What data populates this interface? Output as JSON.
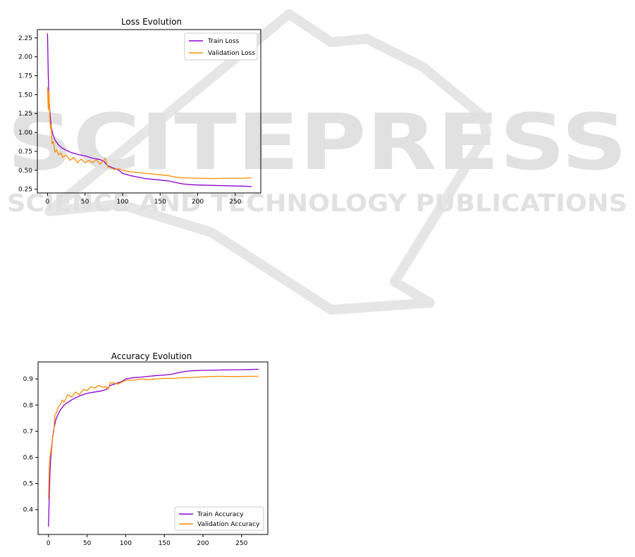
{
  "watermark": {
    "title": "SCITEPRESS",
    "subtitle": "SCIENCE AND TECHNOLOGY PUBLICATIONS",
    "color": "#d9d9d9"
  },
  "chart_data": [
    {
      "type": "line",
      "title": "Loss Evolution",
      "xlabel": "",
      "ylabel": "",
      "xlim": [
        -13.5,
        284
      ],
      "ylim": [
        0.2,
        2.36
      ],
      "xticks": [
        "0",
        "50",
        "100",
        "150",
        "200",
        "250"
      ],
      "xtick_values": [
        0,
        50,
        100,
        150,
        200,
        250
      ],
      "yticks": [
        "0.25",
        "0.50",
        "0.75",
        "1.00",
        "1.25",
        "1.50",
        "1.75",
        "2.00",
        "2.25"
      ],
      "ytick_values": [
        0.25,
        0.5,
        0.75,
        1.0,
        1.25,
        1.5,
        1.75,
        2.0,
        2.25
      ],
      "legend_position": "upper-right",
      "series": [
        {
          "name": "Train Loss",
          "color": "#8b00d4",
          "points": [
            [
              0,
              2.31
            ],
            [
              1,
              1.75
            ],
            [
              2,
              1.45
            ],
            [
              3,
              1.3
            ],
            [
              4,
              1.18
            ],
            [
              5,
              1.08
            ],
            [
              7,
              0.98
            ],
            [
              10,
              0.9
            ],
            [
              15,
              0.83
            ],
            [
              20,
              0.79
            ],
            [
              30,
              0.74
            ],
            [
              40,
              0.71
            ],
            [
              50,
              0.69
            ],
            [
              60,
              0.66
            ],
            [
              70,
              0.64
            ],
            [
              75,
              0.62
            ],
            [
              80,
              0.56
            ],
            [
              90,
              0.52
            ],
            [
              95,
              0.5
            ],
            [
              100,
              0.46
            ],
            [
              110,
              0.43
            ],
            [
              120,
              0.41
            ],
            [
              130,
              0.39
            ],
            [
              140,
              0.38
            ],
            [
              150,
              0.37
            ],
            [
              160,
              0.36
            ],
            [
              170,
              0.34
            ],
            [
              180,
              0.32
            ],
            [
              190,
              0.31
            ],
            [
              200,
              0.305
            ],
            [
              220,
              0.3
            ],
            [
              240,
              0.295
            ],
            [
              260,
              0.29
            ],
            [
              272,
              0.285
            ]
          ]
        },
        {
          "name": "Validation Loss",
          "color": "#ff8c00",
          "points": [
            [
              0,
              1.6
            ],
            [
              1,
              1.3
            ],
            [
              2,
              1.55
            ],
            [
              3,
              1.2
            ],
            [
              4,
              1.05
            ],
            [
              5,
              1.1
            ],
            [
              6,
              0.85
            ],
            [
              8,
              0.88
            ],
            [
              10,
              0.74
            ],
            [
              12,
              0.77
            ],
            [
              15,
              0.7
            ],
            [
              18,
              0.73
            ],
            [
              20,
              0.67
            ],
            [
              25,
              0.7
            ],
            [
              30,
              0.63
            ],
            [
              35,
              0.67
            ],
            [
              40,
              0.6
            ],
            [
              45,
              0.65
            ],
            [
              50,
              0.6
            ],
            [
              55,
              0.63
            ],
            [
              60,
              0.6
            ],
            [
              65,
              0.64
            ],
            [
              70,
              0.58
            ],
            [
              75,
              0.63
            ],
            [
              77,
              0.66
            ],
            [
              80,
              0.55
            ],
            [
              85,
              0.53
            ],
            [
              90,
              0.51
            ],
            [
              95,
              0.52
            ],
            [
              100,
              0.5
            ],
            [
              110,
              0.48
            ],
            [
              120,
              0.47
            ],
            [
              130,
              0.46
            ],
            [
              140,
              0.45
            ],
            [
              150,
              0.44
            ],
            [
              160,
              0.43
            ],
            [
              170,
              0.41
            ],
            [
              180,
              0.4
            ],
            [
              200,
              0.395
            ],
            [
              220,
              0.39
            ],
            [
              240,
              0.395
            ],
            [
              260,
              0.395
            ],
            [
              272,
              0.4
            ]
          ]
        }
      ]
    },
    {
      "type": "line",
      "title": "Accuracy Evolution",
      "xlabel": "",
      "ylabel": "",
      "xlim": [
        -13.5,
        284
      ],
      "ylim": [
        0.305,
        0.965
      ],
      "xticks": [
        "0",
        "50",
        "100",
        "150",
        "200",
        "250"
      ],
      "xtick_values": [
        0,
        50,
        100,
        150,
        200,
        250
      ],
      "yticks": [
        "0.4",
        "0.5",
        "0.6",
        "0.7",
        "0.8",
        "0.9"
      ],
      "ytick_values": [
        0.4,
        0.5,
        0.6,
        0.7,
        0.8,
        0.9
      ],
      "legend_position": "lower-right",
      "series": [
        {
          "name": "Train Accuracy",
          "color": "#8b00d4",
          "points": [
            [
              0,
              0.335
            ],
            [
              1,
              0.45
            ],
            [
              2,
              0.55
            ],
            [
              3,
              0.6
            ],
            [
              4,
              0.64
            ],
            [
              5,
              0.67
            ],
            [
              7,
              0.71
            ],
            [
              10,
              0.75
            ],
            [
              15,
              0.78
            ],
            [
              20,
              0.8
            ],
            [
              30,
              0.82
            ],
            [
              40,
              0.835
            ],
            [
              50,
              0.845
            ],
            [
              60,
              0.85
            ],
            [
              70,
              0.855
            ],
            [
              75,
              0.86
            ],
            [
              80,
              0.875
            ],
            [
              90,
              0.885
            ],
            [
              95,
              0.89
            ],
            [
              100,
              0.9
            ],
            [
              110,
              0.905
            ],
            [
              120,
              0.907
            ],
            [
              130,
              0.91
            ],
            [
              140,
              0.913
            ],
            [
              150,
              0.915
            ],
            [
              160,
              0.918
            ],
            [
              170,
              0.925
            ],
            [
              180,
              0.93
            ],
            [
              190,
              0.932
            ],
            [
              200,
              0.933
            ],
            [
              220,
              0.934
            ],
            [
              240,
              0.935
            ],
            [
              260,
              0.936
            ],
            [
              272,
              0.937
            ]
          ]
        },
        {
          "name": "Validation Accuracy",
          "color": "#ff8c00",
          "points": [
            [
              0,
              0.44
            ],
            [
              1,
              0.56
            ],
            [
              2,
              0.6
            ],
            [
              3,
              0.63
            ],
            [
              4,
              0.62
            ],
            [
              5,
              0.67
            ],
            [
              7,
              0.7
            ],
            [
              8,
              0.76
            ],
            [
              10,
              0.77
            ],
            [
              12,
              0.79
            ],
            [
              15,
              0.8
            ],
            [
              18,
              0.82
            ],
            [
              20,
              0.81
            ],
            [
              25,
              0.84
            ],
            [
              30,
              0.83
            ],
            [
              35,
              0.85
            ],
            [
              40,
              0.84
            ],
            [
              45,
              0.86
            ],
            [
              50,
              0.855
            ],
            [
              55,
              0.87
            ],
            [
              60,
              0.865
            ],
            [
              65,
              0.875
            ],
            [
              70,
              0.868
            ],
            [
              75,
              0.87
            ],
            [
              77,
              0.86
            ],
            [
              80,
              0.885
            ],
            [
              85,
              0.885
            ],
            [
              90,
              0.88
            ],
            [
              95,
              0.888
            ],
            [
              100,
              0.895
            ],
            [
              110,
              0.895
            ],
            [
              120,
              0.9
            ],
            [
              130,
              0.897
            ],
            [
              140,
              0.9
            ],
            [
              150,
              0.902
            ],
            [
              160,
              0.902
            ],
            [
              170,
              0.904
            ],
            [
              180,
              0.905
            ],
            [
              190,
              0.906
            ],
            [
              200,
              0.908
            ],
            [
              220,
              0.91
            ],
            [
              240,
              0.909
            ],
            [
              260,
              0.91
            ],
            [
              272,
              0.91
            ]
          ]
        }
      ]
    }
  ]
}
